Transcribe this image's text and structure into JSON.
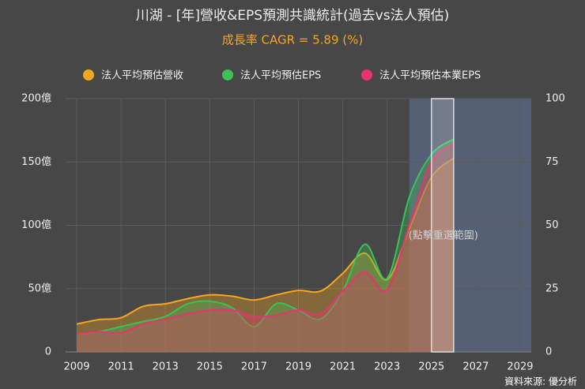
{
  "chart_data": {
    "type": "line",
    "title": "川湖 - [年]營收&EPS預測共識統計(過去vs法人預估)",
    "subtitle": "成長率 CAGR = 5.89 (%)",
    "annotation": "(點擊重選範圍)",
    "source": "資料來源: 優分析",
    "x": [
      2009,
      2010,
      2011,
      2012,
      2013,
      2014,
      2015,
      2016,
      2017,
      2018,
      2019,
      2020,
      2021,
      2022,
      2023,
      2024,
      2025,
      2026
    ],
    "series": [
      {
        "name": "法人平均預估營收",
        "color": "#f5a623",
        "axis": "y",
        "values": [
          22,
          25.5,
          27,
          36,
          38,
          42,
          45,
          44,
          41,
          45,
          48.5,
          48,
          62,
          78,
          57,
          97,
          138,
          153
        ]
      },
      {
        "name": "法人平均預估EPS",
        "color": "#3cc15a",
        "axis": "y2",
        "values": [
          7,
          8,
          10,
          12,
          14,
          19,
          20,
          17.5,
          10,
          19,
          16.5,
          13,
          24,
          42.5,
          29,
          61,
          78,
          84
        ]
      },
      {
        "name": "法人平均預估本業EPS",
        "color": "#e8336e",
        "axis": "y2",
        "values": [
          7,
          8,
          7.5,
          11,
          13,
          15,
          16.5,
          16.5,
          14,
          14.5,
          16.5,
          15,
          24,
          31.5,
          24.5,
          50,
          75,
          82
        ]
      }
    ],
    "xlim": [
      2008.5,
      2029.5
    ],
    "xticks": [
      2009,
      2011,
      2013,
      2015,
      2017,
      2019,
      2021,
      2023,
      2025,
      2027,
      2029
    ],
    "ylim": [
      0,
      200
    ],
    "yticks": [
      {
        "value": 0,
        "label": "0"
      },
      {
        "value": 50,
        "label": "50億"
      },
      {
        "value": 100,
        "label": "100億"
      },
      {
        "value": 150,
        "label": "150億"
      },
      {
        "value": 200,
        "label": "200億"
      }
    ],
    "y2lim": [
      0,
      100
    ],
    "y2ticks": [
      0,
      25,
      50,
      75,
      100
    ],
    "selected_range": [
      2024,
      2029.5
    ],
    "highlight_range": [
      2025,
      2026
    ],
    "grid": true,
    "legend": "top"
  }
}
